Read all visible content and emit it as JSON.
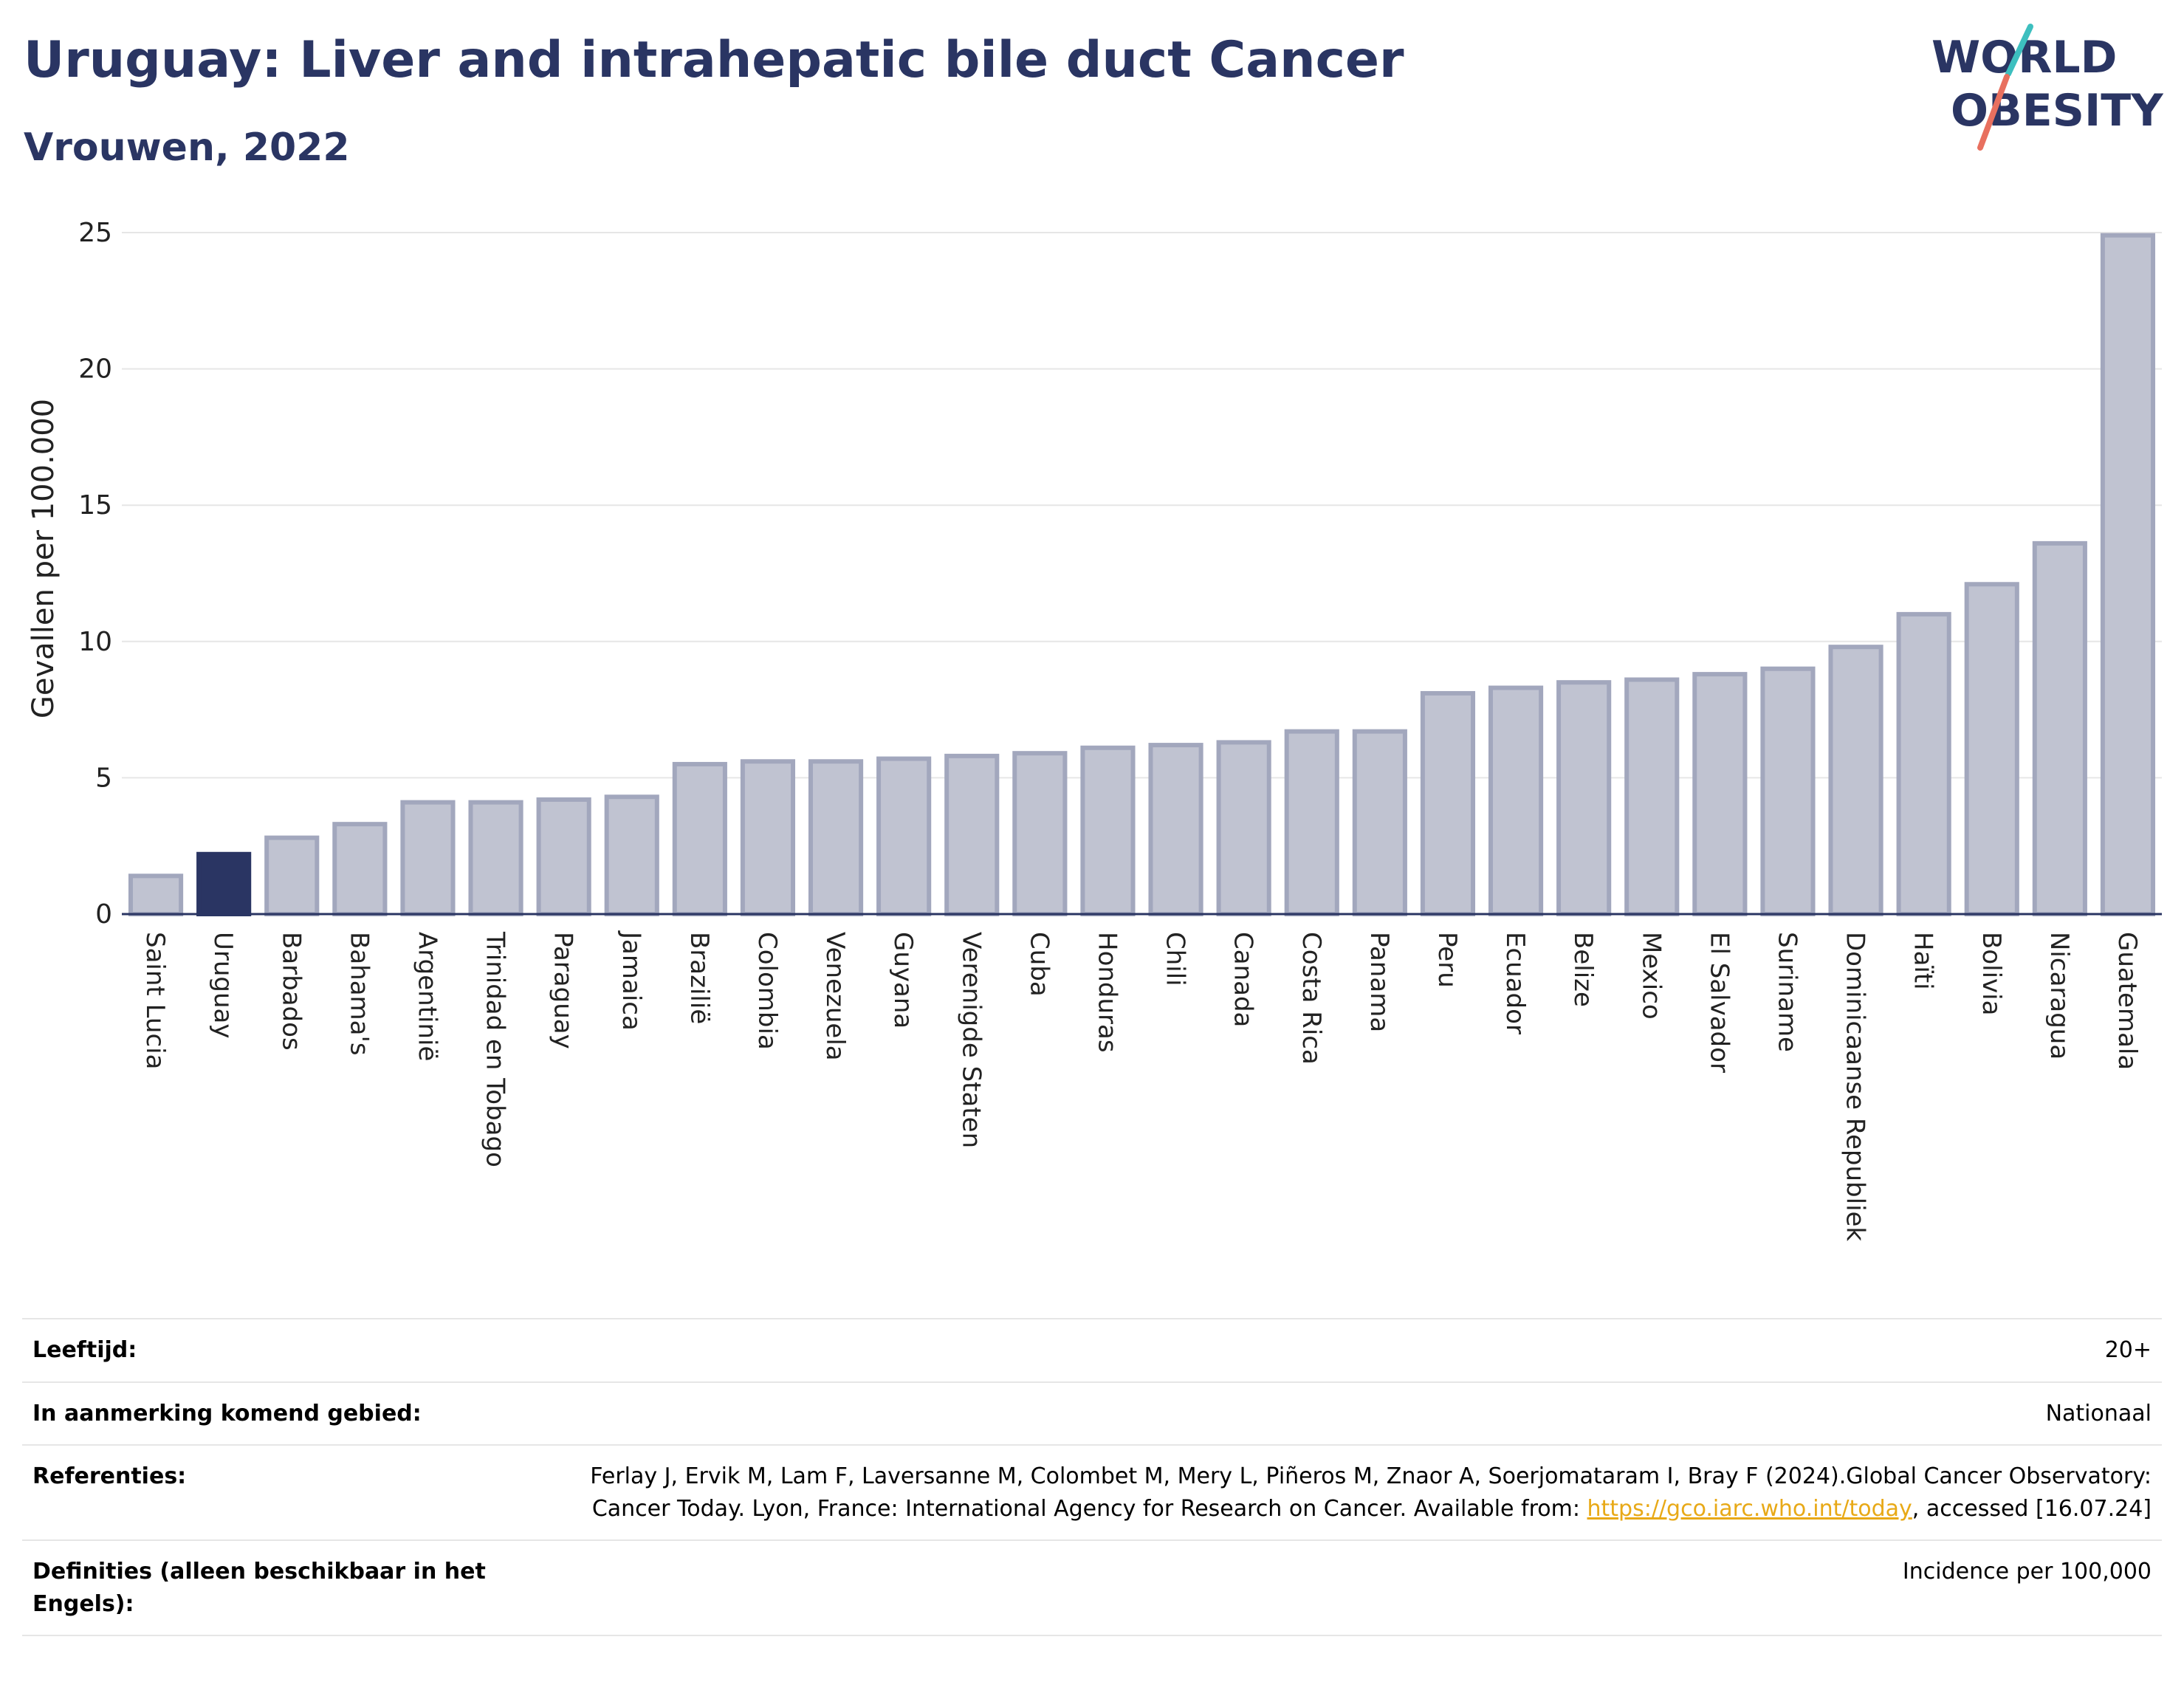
{
  "title": "Uruguay: Liver and intrahepatic bile duct Cancer",
  "subtitle": "Vrouwen, 2022",
  "logo": {
    "line1": "WORLD",
    "line2": "OBESITY"
  },
  "colors": {
    "title": "#2a3563",
    "bar": "#c0c3d1",
    "bar_border": "#a2a7bd",
    "highlight": "#2a3563",
    "logo_teal": "#3dbfbf",
    "logo_coral": "#e8705f",
    "link": "#e8a917"
  },
  "chart_data": {
    "type": "bar",
    "title": "Uruguay: Liver and intrahepatic bile duct Cancer",
    "subtitle": "Vrouwen, 2022",
    "ylabel": "Gevallen per 100.000",
    "ylim": [
      0,
      25
    ],
    "yticks": [
      0,
      5,
      10,
      15,
      20,
      25
    ],
    "grid": true,
    "highlight": "Uruguay",
    "categories": [
      "Saint Lucia",
      "Uruguay",
      "Barbados",
      "Bahama's",
      "Argentinië",
      "Trinidad en Tobago",
      "Paraguay",
      "Jamaica",
      "Brazilië",
      "Colombia",
      "Venezuela",
      "Guyana",
      "Verenigde Staten",
      "Cuba",
      "Honduras",
      "Chili",
      "Canada",
      "Costa Rica",
      "Panama",
      "Peru",
      "Ecuador",
      "Belize",
      "Mexico",
      "El Salvador",
      "Suriname",
      "Dominicaanse Republiek",
      "Haïti",
      "Bolivia",
      "Nicaragua",
      "Guatemala"
    ],
    "values": [
      1.4,
      2.2,
      2.8,
      3.3,
      4.1,
      4.1,
      4.2,
      4.3,
      5.5,
      5.6,
      5.6,
      5.7,
      5.8,
      5.9,
      6.1,
      6.2,
      6.3,
      6.7,
      6.7,
      8.1,
      8.3,
      8.5,
      8.6,
      8.8,
      9.0,
      9.8,
      11.0,
      12.1,
      13.6,
      24.9
    ]
  },
  "info": [
    {
      "label": "Leeftijd:",
      "value": "20+"
    },
    {
      "label": "In aanmerking komend gebied:",
      "value": "Nationaal"
    },
    {
      "label": "Referenties:",
      "value_pre": "Ferlay J, Ervik M, Lam F, Laversanne M, Colombet M, Mery L, Piñeros M, Znaor A, Soerjomataram I, Bray F (2024).Global Cancer Observatory: Cancer Today. Lyon, France: International Agency for Research on Cancer. Available from: ",
      "link": "https://gco.iarc.who.int/today",
      "value_post": ", accessed [16.07.24]"
    },
    {
      "label": "Definities (alleen beschikbaar in het Engels):",
      "value": "Incidence per 100,000"
    }
  ]
}
